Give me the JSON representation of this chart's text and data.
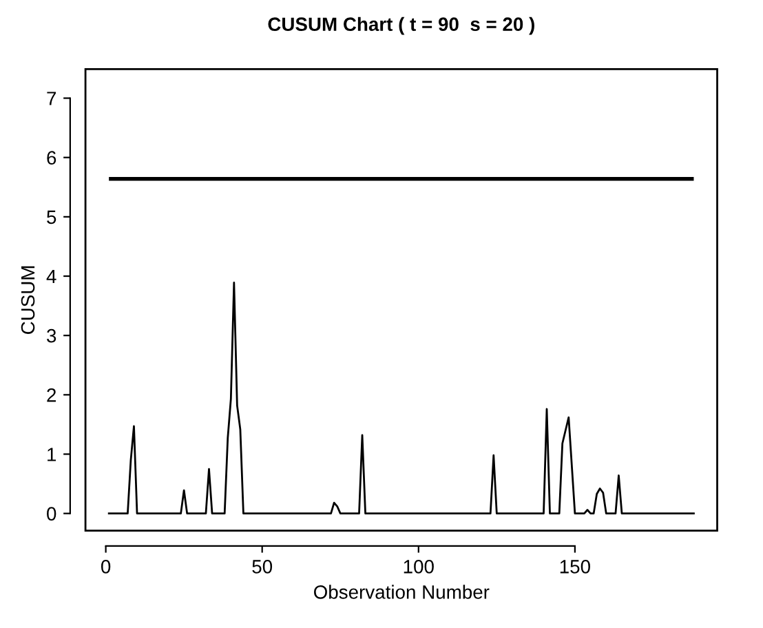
{
  "chart_data": {
    "type": "line",
    "title": "CUSUM Chart ( t = 90  s = 20 )",
    "xlabel": "Observation Number",
    "ylabel": "CUSUM",
    "series": [
      {
        "color": "#000000",
        "x": [
          1,
          7,
          8,
          9,
          10,
          24,
          25,
          26,
          32,
          33,
          34,
          38,
          39,
          40,
          41,
          42,
          43,
          44,
          72,
          73,
          74,
          75,
          81,
          82,
          83,
          123,
          124,
          125,
          140,
          141,
          142,
          145,
          146,
          147,
          148,
          150,
          153,
          154,
          155,
          156,
          157,
          158,
          159,
          160,
          163,
          164,
          165,
          188
        ],
        "values": [
          0,
          0,
          0.9,
          1.47,
          0,
          0,
          0.39,
          0,
          0,
          0.75,
          0,
          0,
          1.27,
          1.93,
          3.89,
          1.82,
          1.42,
          0,
          0,
          0.18,
          0.12,
          0,
          0,
          1.32,
          0,
          0,
          0.98,
          0,
          0,
          1.76,
          0,
          0,
          1.18,
          1.4,
          1.62,
          0,
          0,
          0.06,
          0,
          0,
          0.33,
          0.42,
          0.35,
          0,
          0,
          0.64,
          0,
          0
        ]
      }
    ],
    "ref_lines": [
      {
        "axis": "y",
        "value": 5.64,
        "color": "#000000"
      }
    ],
    "xlim": [
      -6.5,
      195.5
    ],
    "ylim": [
      -0.29,
      7.49
    ],
    "xticks": [
      0,
      50,
      100,
      150
    ],
    "yticks": [
      0,
      1,
      2,
      3,
      4,
      5,
      6,
      7
    ],
    "grid": false,
    "legend": false,
    "marker": "none",
    "line_style": "solid"
  }
}
